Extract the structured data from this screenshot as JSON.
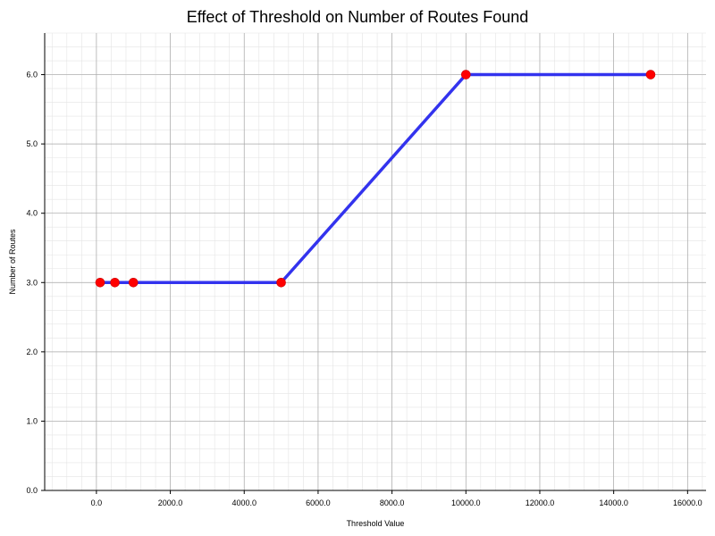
{
  "chart_data": {
    "type": "line",
    "title": "Effect of Threshold on Number of Routes Found",
    "xlabel": "Threshold Value",
    "ylabel": "Number of Routes",
    "xlim": [
      -1400,
      16500
    ],
    "ylim": [
      0,
      6.6
    ],
    "x_ticks": [
      0,
      2000,
      4000,
      6000,
      8000,
      10000,
      12000,
      14000,
      16000
    ],
    "x_tick_labels": [
      "0.0",
      "2000.0",
      "4000.0",
      "6000.0",
      "8000.0",
      "10000.0",
      "12000.0",
      "14000.0",
      "16000.0"
    ],
    "y_ticks": [
      0,
      1,
      2,
      3,
      4,
      5,
      6
    ],
    "y_tick_labels": [
      "0.0",
      "1.0",
      "2.0",
      "3.0",
      "4.0",
      "5.0",
      "6.0"
    ],
    "grid": true,
    "legend": "none",
    "series": [
      {
        "x": [
          100,
          500,
          1000,
          5000,
          10000,
          15000
        ],
        "y": [
          3,
          3,
          3,
          3,
          6,
          6
        ],
        "line_color": "#3333ee",
        "marker_color": "#ff0000"
      }
    ]
  }
}
